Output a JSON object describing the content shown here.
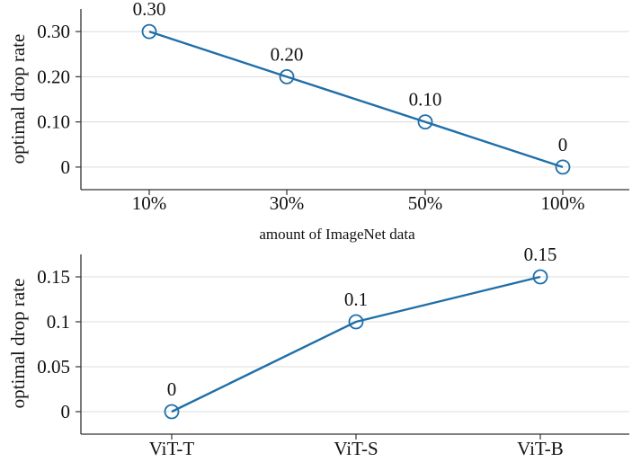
{
  "chart_data": [
    {
      "type": "line",
      "categories": [
        "10%",
        "30%",
        "50%",
        "100%"
      ],
      "values": [
        0.3,
        0.2,
        0.1,
        0
      ],
      "data_labels": [
        "0.30",
        "0.20",
        "0.10",
        "0"
      ],
      "ylabel": "optimal drop rate",
      "xlabel": "amount of ImageNet data",
      "ylim": [
        -0.05,
        0.35
      ],
      "yticks": [
        0,
        0.1,
        0.2,
        0.3
      ],
      "ytick_labels": [
        "0",
        "0.10",
        "0.20",
        "0.30"
      ],
      "grid": "horizontal",
      "color": "#1f6fa8",
      "marker": "open-circle"
    },
    {
      "type": "line",
      "categories": [
        "ViT-T",
        "ViT-S",
        "ViT-B"
      ],
      "values": [
        0,
        0.1,
        0.15
      ],
      "data_labels": [
        "0",
        "0.1",
        "0.15"
      ],
      "ylabel": "optimal drop rate",
      "xlabel": "",
      "ylim": [
        -0.025,
        0.175
      ],
      "yticks": [
        0,
        0.05,
        0.1,
        0.15
      ],
      "ytick_labels": [
        "0",
        "0.05",
        "0.1",
        "0.15"
      ],
      "grid": "horizontal",
      "color": "#1f6fa8",
      "marker": "open-circle"
    }
  ]
}
